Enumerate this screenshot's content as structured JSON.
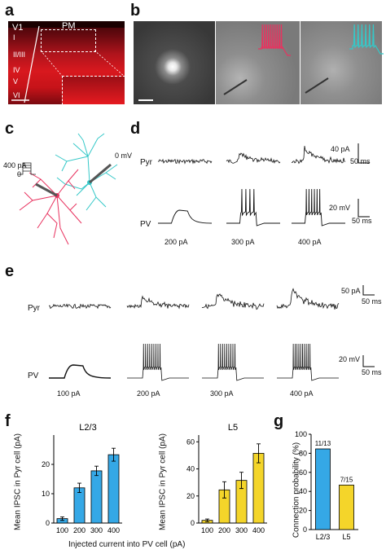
{
  "panel_labels": {
    "a": "a",
    "b": "b",
    "c": "c",
    "d": "d",
    "e": "e",
    "f": "f",
    "g": "g"
  },
  "panel_a": {
    "region_v1": "V1",
    "region_pm": "PM",
    "layers": [
      "I",
      "II/III",
      "IV",
      "V",
      "VI"
    ]
  },
  "panel_c": {
    "step_current": "400 pA",
    "step_zero": "0",
    "voltage": "0 mV"
  },
  "panel_d": {
    "pyr_label": "Pyr",
    "pv_label": "PV",
    "currents": [
      "200 pA",
      "300 pA",
      "400 pA"
    ],
    "scale_pa": "40 pA",
    "scale_ms_top": "50 ms",
    "scale_mv": "20 mV",
    "scale_ms_bottom": "50 ms"
  },
  "panel_e": {
    "pyr_label": "Pyr",
    "pv_label": "PV",
    "currents": [
      "100 pA",
      "200 pA",
      "300 pA",
      "400 pA"
    ],
    "scale_pa": "50 pA",
    "scale_ms_top": "50 ms",
    "scale_mv": "20 mV",
    "scale_ms_bottom": "50 ms"
  },
  "shared_labels": {
    "f_ylabel": "Mean IPSC in Pyr cell (pA)",
    "f_xlabel": "Injected current into PV cell (pA)",
    "g_ylabel": "Connection probability (%)"
  },
  "colors": {
    "blue": "#35a8e6",
    "yellow": "#f4d52a",
    "pink": "#e8325f",
    "cyan": "#35c8c8",
    "red_tissue": "#c8101a"
  },
  "chart_data": [
    {
      "type": "bar",
      "title": "L2/3",
      "categories": [
        "100",
        "200",
        "300",
        "400"
      ],
      "values": [
        1.5,
        12,
        17.8,
        23.3
      ],
      "errors": [
        0.6,
        1.6,
        1.6,
        2.2
      ],
      "ylim": [
        0,
        30
      ],
      "yticks": [
        "0",
        "10",
        "20"
      ],
      "color": "#35a8e6"
    },
    {
      "type": "bar",
      "title": "L5",
      "categories": [
        "100",
        "200",
        "300",
        "400"
      ],
      "values": [
        2,
        24.5,
        31.5,
        51.5
      ],
      "errors": [
        1,
        6,
        6,
        7
      ],
      "ylim": [
        0,
        65
      ],
      "yticks": [
        "0",
        "20",
        "40",
        "60"
      ],
      "color": "#f4d52a"
    },
    {
      "type": "bar",
      "categories": [
        "L2/3",
        "L5"
      ],
      "values": [
        84.6,
        46.7
      ],
      "data_labels": [
        "11/13",
        "7/15"
      ],
      "ylim": [
        0,
        100
      ],
      "yticks": [
        "0",
        "20",
        "40",
        "60",
        "80",
        "100"
      ],
      "colors": [
        "#35a8e6",
        "#f4d52a"
      ]
    }
  ]
}
